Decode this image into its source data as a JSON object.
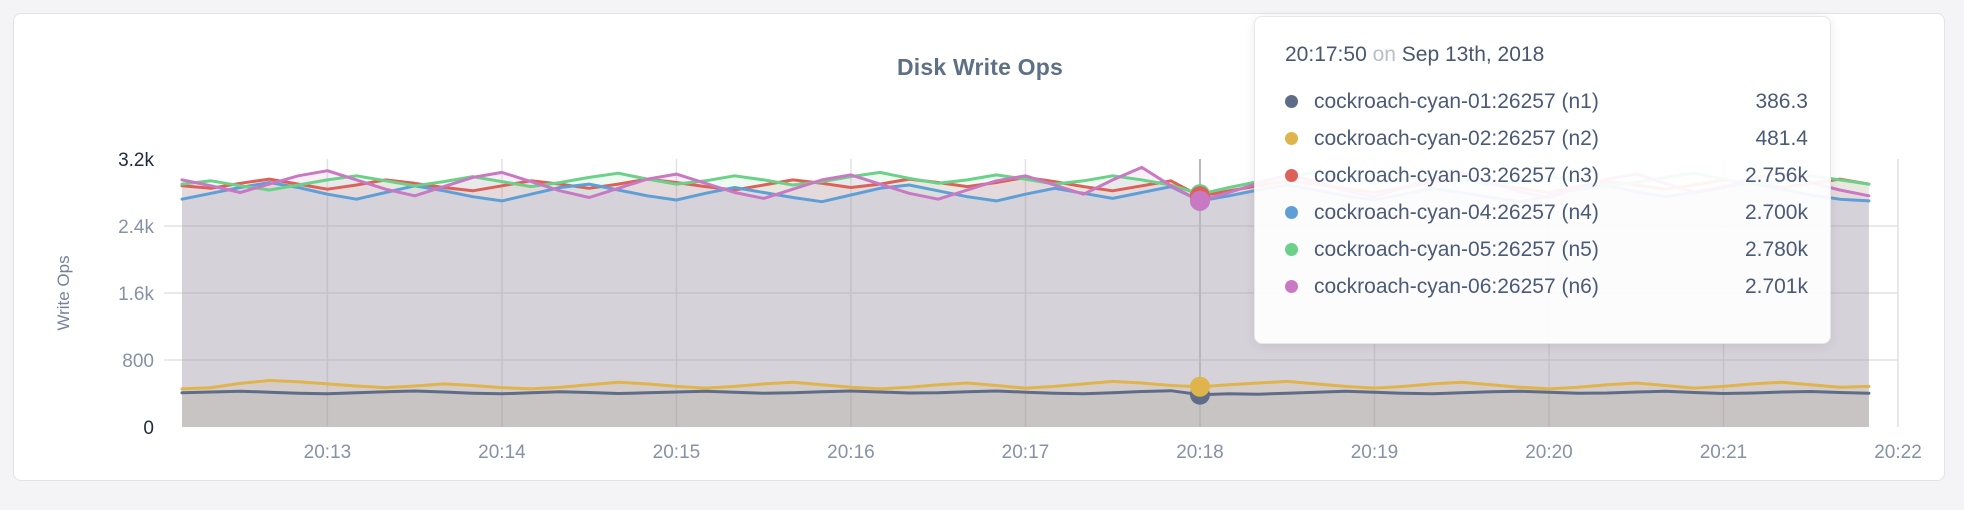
{
  "chart_data": {
    "type": "line",
    "title": "Disk Write Ops",
    "ylabel": "Write Ops",
    "ylim": [
      0,
      3200
    ],
    "grid": true,
    "x_ticks": [
      "20:13",
      "20:14",
      "20:15",
      "20:16",
      "20:17",
      "20:18",
      "20:19",
      "20:20",
      "20:21",
      "20:22"
    ],
    "y_ticks": [
      {
        "value": 0,
        "label": "0",
        "emphasized": true
      },
      {
        "value": 800,
        "label": "800",
        "emphasized": false
      },
      {
        "value": 1600,
        "label": "1.6k",
        "emphasized": false
      },
      {
        "value": 2400,
        "label": "2.4k",
        "emphasized": false
      },
      {
        "value": 3200,
        "label": "3.2k",
        "emphasized": true
      }
    ],
    "y_gridline_values": [
      800,
      1600,
      2400
    ],
    "sample_interval_sec": 10,
    "domain_sec": 590,
    "first_tick_sec": 50,
    "tick_step_sec": 60,
    "series": [
      {
        "name": "cockroach-cyan-01:26257 (n1)",
        "color": "#5f6c87",
        "values": [
          408,
          418,
          428,
          416,
          404,
          398,
          408,
          420,
          430,
          418,
          404,
          396,
          408,
          420,
          412,
          400,
          408,
          418,
          426,
          414,
          402,
          408,
          420,
          430,
          418,
          406,
          410,
          422,
          430,
          416,
          404,
          398,
          410,
          424,
          434,
          386,
          398,
          392,
          404,
          416,
          426,
          414,
          402,
          396,
          408,
          420,
          428,
          414,
          402,
          406,
          418,
          426,
          412,
          400,
          406,
          418,
          424,
          412,
          404
        ]
      },
      {
        "name": "cockroach-cyan-02:26257 (n2)",
        "color": "#e0b44c",
        "values": [
          455,
          470,
          520,
          555,
          540,
          515,
          490,
          470,
          490,
          515,
          495,
          470,
          455,
          475,
          505,
          535,
          515,
          485,
          465,
          485,
          515,
          535,
          505,
          475,
          455,
          475,
          505,
          525,
          495,
          465,
          485,
          515,
          545,
          525,
          495,
          481,
          505,
          525,
          545,
          515,
          485,
          465,
          485,
          515,
          535,
          505,
          475,
          455,
          475,
          505,
          525,
          495,
          465,
          485,
          515,
          535,
          505,
          475,
          485
        ]
      },
      {
        "name": "cockroach-cyan-03:26257 (n3)",
        "color": "#dc6158",
        "values": [
          2880,
          2850,
          2910,
          2960,
          2900,
          2840,
          2890,
          2950,
          2910,
          2860,
          2820,
          2880,
          2940,
          2900,
          2850,
          2900,
          2960,
          2920,
          2870,
          2830,
          2890,
          2950,
          2910,
          2860,
          2900,
          2960,
          2920,
          2870,
          2920,
          2980,
          2930,
          2870,
          2820,
          2880,
          2940,
          2756,
          2820,
          2880,
          2940,
          2900,
          2850,
          2800,
          2860,
          2920,
          2960,
          2900,
          2850,
          2800,
          2870,
          2930,
          2890,
          2840,
          2890,
          2950,
          2910,
          2860,
          2910,
          2960,
          2900
        ]
      },
      {
        "name": "cockroach-cyan-04:26257 (n4)",
        "color": "#5f9fd6",
        "values": [
          2720,
          2790,
          2860,
          2920,
          2860,
          2780,
          2720,
          2800,
          2880,
          2820,
          2750,
          2700,
          2780,
          2860,
          2900,
          2830,
          2760,
          2710,
          2790,
          2860,
          2800,
          2740,
          2690,
          2770,
          2850,
          2890,
          2820,
          2750,
          2700,
          2780,
          2850,
          2790,
          2730,
          2800,
          2870,
          2700,
          2760,
          2830,
          2890,
          2830,
          2760,
          2710,
          2780,
          2850,
          2800,
          2740,
          2690,
          2760,
          2840,
          2880,
          2810,
          2750,
          2800,
          2870,
          2910,
          2840,
          2770,
          2720,
          2700
        ]
      },
      {
        "name": "cockroach-cyan-05:26257 (n5)",
        "color": "#6bd189",
        "values": [
          2900,
          2940,
          2880,
          2830,
          2890,
          2950,
          3000,
          2940,
          2880,
          2930,
          2990,
          2930,
          2870,
          2920,
          2980,
          3030,
          2960,
          2900,
          2940,
          3000,
          2950,
          2890,
          2930,
          2990,
          3040,
          2970,
          2910,
          2950,
          3010,
          2960,
          2900,
          2940,
          3000,
          2950,
          2890,
          2780,
          2860,
          2930,
          2990,
          3040,
          2970,
          2910,
          2950,
          3010,
          2950,
          2890,
          2930,
          2990,
          2940,
          2880,
          2920,
          2980,
          3030,
          2960,
          2900,
          2940,
          3000,
          2950,
          2900
        ]
      },
      {
        "name": "cockroach-cyan-06:26257 (n6)",
        "color": "#c979c3",
        "values": [
          2950,
          2880,
          2800,
          2900,
          3000,
          3060,
          2950,
          2840,
          2760,
          2870,
          2980,
          3040,
          2930,
          2820,
          2740,
          2850,
          2960,
          3020,
          2910,
          2800,
          2730,
          2840,
          2950,
          3010,
          2900,
          2790,
          2720,
          2830,
          2940,
          3000,
          2890,
          2780,
          2950,
          3100,
          2880,
          2701,
          2800,
          2910,
          3010,
          2930,
          2820,
          2750,
          2860,
          2970,
          3030,
          2920,
          2810,
          2740,
          2850,
          2960,
          3020,
          2910,
          2800,
          2860,
          2970,
          3030,
          2920,
          2830,
          2760
        ]
      }
    ]
  },
  "tooltip": {
    "time": "20:17:50",
    "conj": "on",
    "date": "Sep 13th, 2018",
    "hover_index": 35,
    "rows": [
      {
        "name": "cockroach-cyan-01:26257 (n1)",
        "value": "386.3",
        "color": "#5f6c87"
      },
      {
        "name": "cockroach-cyan-02:26257 (n2)",
        "value": "481.4",
        "color": "#e0b44c"
      },
      {
        "name": "cockroach-cyan-03:26257 (n3)",
        "value": "2.756k",
        "color": "#dc6158"
      },
      {
        "name": "cockroach-cyan-04:26257 (n4)",
        "value": "2.700k",
        "color": "#5f9fd6"
      },
      {
        "name": "cockroach-cyan-05:26257 (n5)",
        "value": "2.780k",
        "color": "#6bd189"
      },
      {
        "name": "cockroach-cyan-06:26257 (n6)",
        "value": "2.701k",
        "color": "#c979c3"
      }
    ]
  },
  "colors": {
    "page_bg": "#f4f4f6",
    "card_bg": "#ffffff",
    "card_border": "#e3e3e6",
    "grid_line": "#e2e2e5",
    "hover_line": "#b7b8bc",
    "axis_label": "#8791a5",
    "axis_label_emphasized": "#232b3a",
    "title": "#5d7085"
  }
}
